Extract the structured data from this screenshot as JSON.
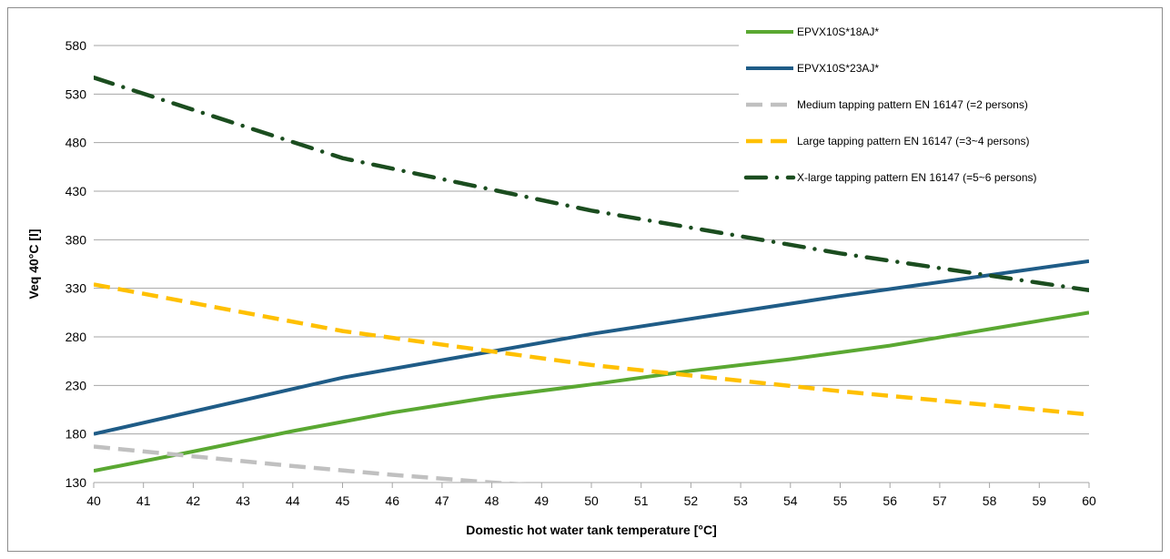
{
  "chart_data": {
    "type": "line",
    "xlabel": "Domestic hot water tank temperature [°C]",
    "ylabel": "Veq 40°C [l]",
    "xlim": [
      40,
      60
    ],
    "ylim": [
      130,
      580
    ],
    "x_ticks": [
      "40",
      "41",
      "42",
      "43",
      "44",
      "45",
      "46",
      "47",
      "48",
      "49",
      "50",
      "51",
      "52",
      "53",
      "54",
      "55",
      "56",
      "57",
      "58",
      "59",
      "60"
    ],
    "y_ticks": [
      "130",
      "180",
      "230",
      "280",
      "330",
      "380",
      "430",
      "480",
      "530",
      "580"
    ],
    "grid": "horizontal",
    "legend_position": "top-right",
    "series": [
      {
        "name": "EPVX10S*18AJ*",
        "color": "#5aa832",
        "style": "solid",
        "x": [
          40,
          42,
          44,
          46,
          48,
          50,
          52,
          54,
          56,
          58,
          60
        ],
        "y": [
          142,
          162,
          183,
          202,
          218,
          231,
          245,
          257,
          271,
          288,
          305
        ]
      },
      {
        "name": "EPVX10S*23AJ*",
        "color": "#1f5c87",
        "style": "solid",
        "x": [
          40,
          45,
          50,
          55,
          60
        ],
        "y": [
          180,
          238,
          283,
          322,
          358
        ]
      },
      {
        "name": "Medium tapping pattern EN 16147 (=2 persons)",
        "color": "#c0c0c0",
        "style": "dash",
        "x": [
          40,
          42,
          44,
          46,
          48,
          50
        ],
        "y": [
          167,
          157,
          147,
          138,
          130,
          124
        ]
      },
      {
        "name": "Large tapping pattern EN 16147 (=3~4 persons)",
        "color": "#ffc000",
        "style": "dash",
        "x": [
          40,
          45,
          50,
          55,
          60
        ],
        "y": [
          334,
          286,
          251,
          224,
          200
        ]
      },
      {
        "name": "X-large tapping pattern EN 16147 (=5~6 persons)",
        "color": "#1b4d1f",
        "style": "dashdot",
        "x": [
          40,
          45,
          50,
          55,
          60
        ],
        "y": [
          547,
          464,
          410,
          366,
          328
        ]
      }
    ]
  }
}
